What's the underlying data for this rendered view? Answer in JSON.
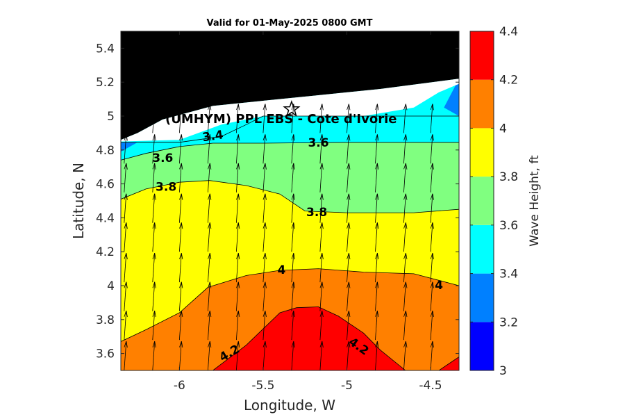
{
  "chart_data": {
    "type": "contourf",
    "title": "Valid for 01-May-2025 0800 GMT",
    "xlabel": "Longitude, W",
    "ylabel": "Latitude, N",
    "xlim": [
      -6.35,
      -4.33
    ],
    "ylim": [
      3.5,
      5.5
    ],
    "xticks": [
      -6,
      -5.5,
      -5,
      -4.5
    ],
    "xtick_labels": [
      "-6",
      "-5.5",
      "-5",
      "-4.5"
    ],
    "yticks": [
      3.6,
      3.8,
      4,
      4.2,
      4.4,
      4.6,
      4.8,
      5,
      5.2,
      5.4
    ],
    "ytick_labels": [
      "3.6",
      "3.8",
      "4",
      "4.2",
      "4.4",
      "4.6",
      "4.8",
      "5",
      "5.2",
      "5.4"
    ],
    "land_color": "#000000",
    "annotation": "(UMHYM) PPL EBS  - Cote d'Ivorie",
    "site_marker": {
      "lon": -5.33,
      "lat": 5.04,
      "symbol": "star"
    },
    "colorbar": {
      "label": "Wave Height, ft",
      "ticks": [
        3,
        3.2,
        3.4,
        3.6,
        3.8,
        4,
        4.2,
        4.4
      ],
      "tick_labels": [
        "3",
        "3.2",
        "3.4",
        "3.6",
        "3.8",
        "4",
        "4.2",
        "4.4"
      ],
      "levels": [
        {
          "range": [
            3.0,
            3.2
          ],
          "color": "#0000ff"
        },
        {
          "range": [
            3.2,
            3.4
          ],
          "color": "#0080ff"
        },
        {
          "range": [
            3.4,
            3.6
          ],
          "color": "#00ffff"
        },
        {
          "range": [
            3.6,
            3.8
          ],
          "color": "#80ff80"
        },
        {
          "range": [
            3.8,
            4.0
          ],
          "color": "#ffff00"
        },
        {
          "range": [
            4.0,
            4.2
          ],
          "color": "#ff8000"
        },
        {
          "range": [
            4.2,
            4.4
          ],
          "color": "#ff0000"
        }
      ]
    },
    "contour_lines": [
      {
        "level": 3.4,
        "points": [
          [
            -6.35,
            4.845
          ],
          [
            -6.0,
            4.845
          ],
          [
            -5.75,
            4.88
          ],
          [
            -5.6,
            4.95
          ],
          [
            -5.5,
            5.0
          ],
          [
            -4.33,
            5.0
          ]
        ]
      },
      {
        "level": 3.6,
        "points": [
          [
            -6.35,
            4.74
          ],
          [
            -6.2,
            4.78
          ],
          [
            -6.0,
            4.82
          ],
          [
            -5.8,
            4.84
          ],
          [
            -5.5,
            4.84
          ],
          [
            -5.0,
            4.845
          ],
          [
            -4.6,
            4.845
          ],
          [
            -4.33,
            4.845
          ]
        ]
      },
      {
        "level": 3.8,
        "points": [
          [
            -6.35,
            4.51
          ],
          [
            -6.2,
            4.57
          ],
          [
            -6.0,
            4.61
          ],
          [
            -5.82,
            4.62
          ],
          [
            -5.6,
            4.59
          ],
          [
            -5.4,
            4.54
          ],
          [
            -5.25,
            4.44
          ],
          [
            -5.0,
            4.43
          ],
          [
            -4.6,
            4.43
          ],
          [
            -4.33,
            4.45
          ]
        ]
      },
      {
        "level": 4.0,
        "points": [
          [
            -6.35,
            3.67
          ],
          [
            -6.2,
            3.74
          ],
          [
            -6.0,
            3.84
          ],
          [
            -5.83,
            3.99
          ],
          [
            -5.6,
            4.06
          ],
          [
            -5.4,
            4.09
          ],
          [
            -5.17,
            4.1
          ],
          [
            -4.9,
            4.08
          ],
          [
            -4.6,
            4.07
          ],
          [
            -4.33,
            4.0
          ]
        ]
      },
      {
        "level": 4.2,
        "points": [
          [
            -5.8,
            3.5
          ],
          [
            -5.6,
            3.65
          ],
          [
            -5.4,
            3.84
          ],
          [
            -5.3,
            3.87
          ],
          [
            -5.17,
            3.875
          ],
          [
            -5.05,
            3.82
          ],
          [
            -4.9,
            3.72
          ],
          [
            -4.8,
            3.62
          ],
          [
            -4.65,
            3.5
          ]
        ]
      },
      {
        "level": 4.2,
        "points": [
          [
            -4.45,
            3.5
          ],
          [
            -4.33,
            3.58
          ]
        ]
      }
    ],
    "contour_labels": [
      {
        "text": "3.4",
        "lon": -5.8,
        "lat": 4.88,
        "angle": -8
      },
      {
        "text": "3.6",
        "lon": -5.17,
        "lat": 4.84,
        "angle": 0
      },
      {
        "text": "3.6",
        "lon": -6.1,
        "lat": 4.75,
        "angle": 0
      },
      {
        "text": "3.8",
        "lon": -6.08,
        "lat": 4.58,
        "angle": 0
      },
      {
        "text": "3.8",
        "lon": -5.18,
        "lat": 4.43,
        "angle": 0
      },
      {
        "text": "4",
        "lon": -5.39,
        "lat": 4.09,
        "angle": 0
      },
      {
        "text": "4",
        "lon": -4.45,
        "lat": 4.0,
        "angle": 0
      },
      {
        "text": "4.2",
        "lon": -5.7,
        "lat": 3.6,
        "angle": -30
      },
      {
        "text": "4.2",
        "lon": -4.93,
        "lat": 3.64,
        "angle": 35
      }
    ],
    "vector_field": {
      "lon": [
        -6.33,
        -6.16,
        -6.0,
        -5.83,
        -5.66,
        -5.5,
        -5.33,
        -5.16,
        -5.0,
        -4.83,
        -4.66,
        -4.5,
        -4.33
      ],
      "lat": [
        3.5,
        3.68,
        3.85,
        4.02,
        4.2,
        4.37,
        4.55,
        4.72,
        4.9,
        5.07
      ],
      "direction": "northward",
      "tilt_deg": 4
    }
  }
}
